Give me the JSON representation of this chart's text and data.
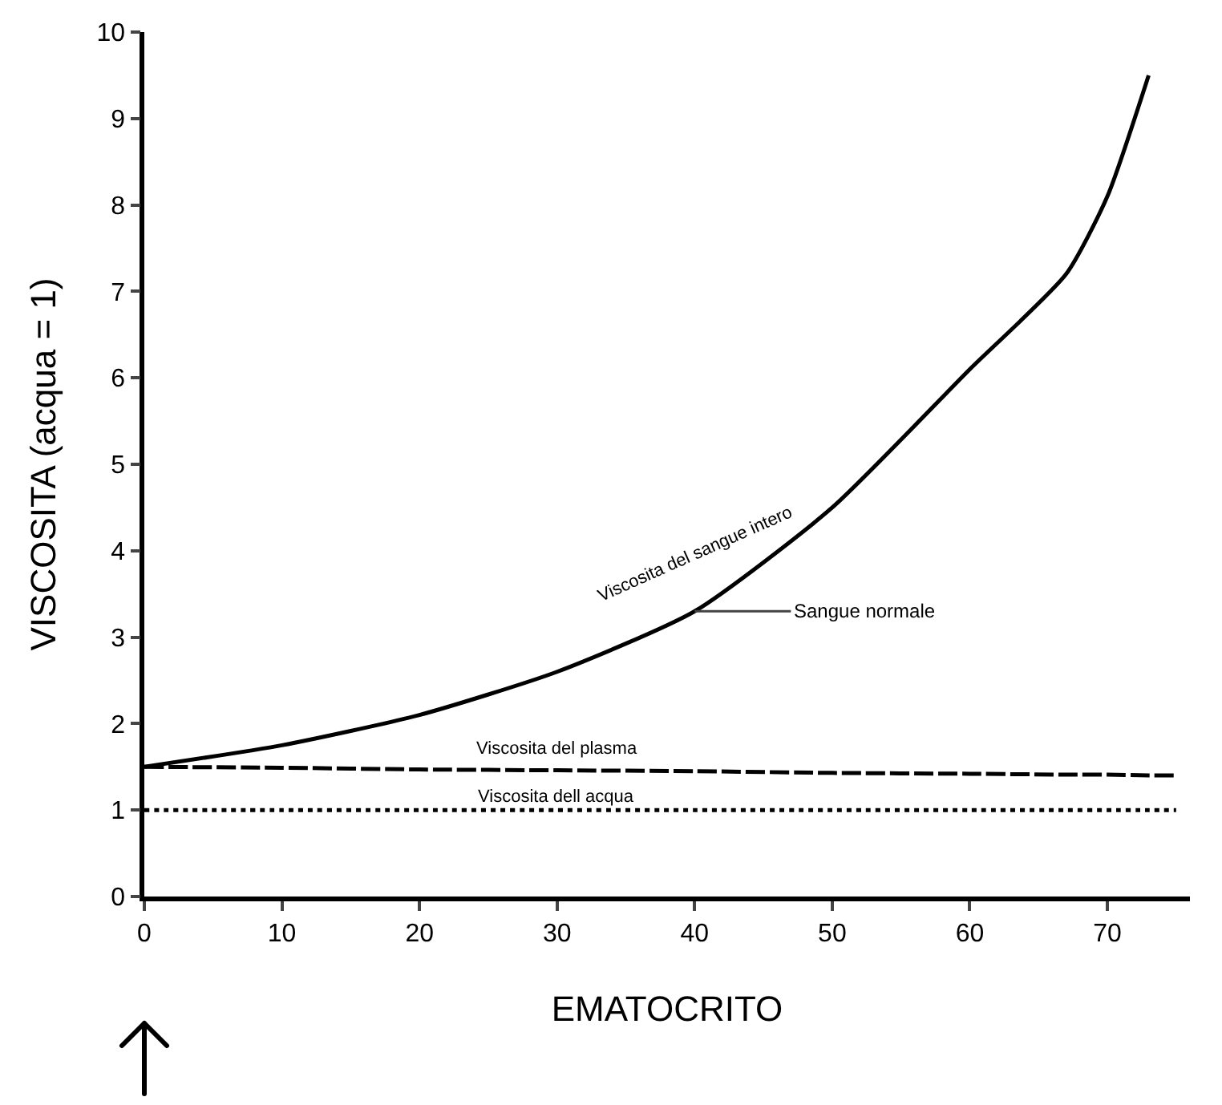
{
  "chart_data": {
    "type": "line",
    "xlabel": "EMATOCRITO",
    "ylabel": "VISCOSITA (acqua = 1)",
    "x": [
      0,
      10,
      20,
      30,
      40,
      50,
      60,
      67,
      70,
      73,
      75
    ],
    "series": [
      {
        "name": "Viscosita del sangue intero",
        "color": "#000000",
        "line_style": "solid",
        "values": [
          1.5,
          1.75,
          2.1,
          2.6,
          3.3,
          4.5,
          6.1,
          7.2,
          8.1,
          9.5,
          null
        ]
      },
      {
        "name": "Viscosita del plasma",
        "color": "#000000",
        "line_style": "dashed",
        "values": [
          1.5,
          1.49,
          1.47,
          1.46,
          1.45,
          1.43,
          1.42,
          1.41,
          1.41,
          1.4,
          1.4
        ]
      },
      {
        "name": "Viscosita dell acqua",
        "color": "#000000",
        "line_style": "dotted",
        "values": [
          1,
          1,
          1,
          1,
          1,
          1,
          1,
          1,
          1,
          1,
          1
        ]
      }
    ],
    "annotations": [
      {
        "text": "Sangue normale",
        "x": 40,
        "y": 3.3
      }
    ],
    "xlim": [
      0,
      76
    ],
    "xticks": [
      0,
      10,
      20,
      30,
      40,
      50,
      60,
      70
    ],
    "ylim": [
      0,
      10
    ],
    "yticks": [
      0,
      1,
      2,
      3,
      4,
      5,
      6,
      7,
      8,
      9,
      10
    ],
    "grid": false
  }
}
